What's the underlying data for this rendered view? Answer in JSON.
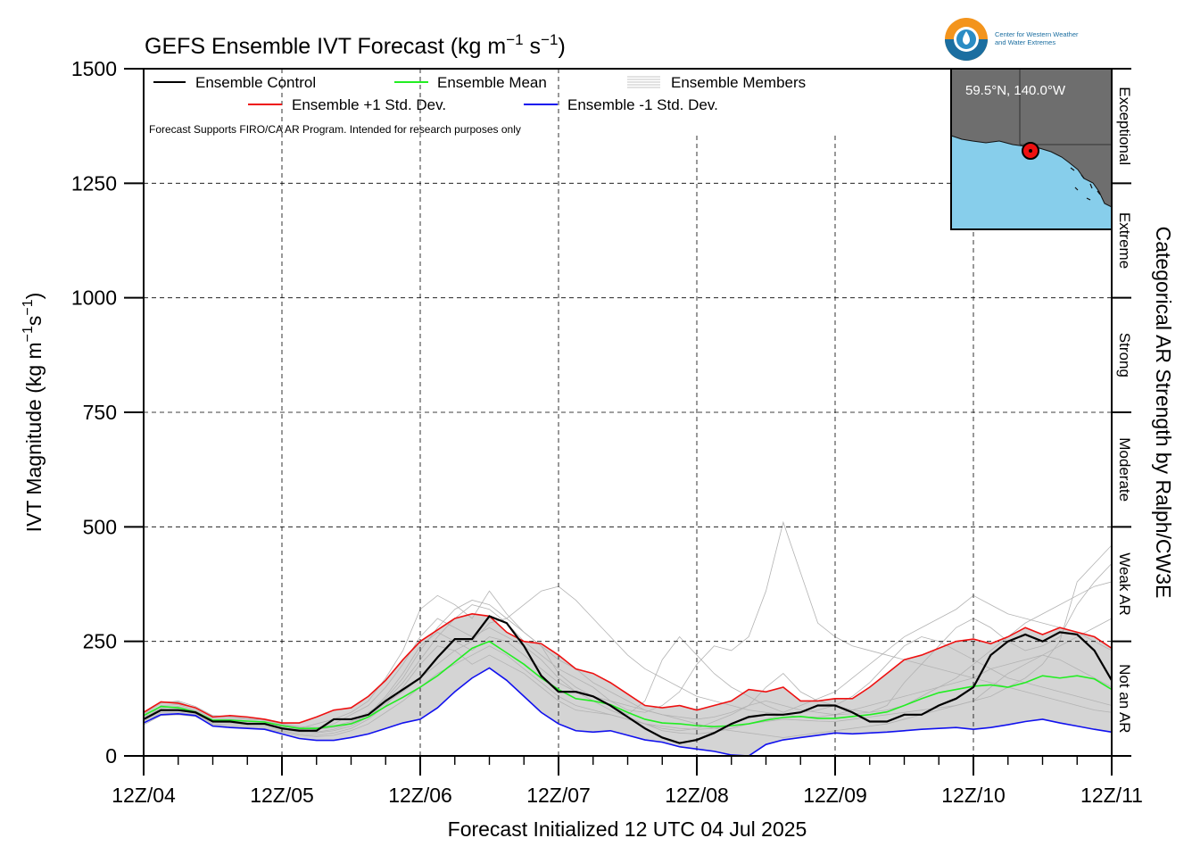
{
  "chart_data": {
    "type": "line",
    "title": "GEFS Ensemble IVT Forecast (kg m",
    "title_unit": [
      "−1",
      " s",
      "−1",
      ")"
    ],
    "xlabel": "Forecast Initialized 12 UTC 04 Jul 2025",
    "ylabel": "IVT Magnitude (kg m",
    "ylabel_unit": [
      "−1",
      "s",
      "−1",
      ")"
    ],
    "right_label": "Categorical AR Strength by Ralph/CW3E",
    "xlim": [
      0,
      168
    ],
    "ylim": [
      0,
      1500
    ],
    "x_ticks": [
      {
        "x": 0,
        "label": "12Z/04"
      },
      {
        "x": 24,
        "label": "12Z/05"
      },
      {
        "x": 48,
        "label": "12Z/06"
      },
      {
        "x": 72,
        "label": "12Z/07"
      },
      {
        "x": 96,
        "label": "12Z/08"
      },
      {
        "x": 120,
        "label": "12Z/09"
      },
      {
        "x": 144,
        "label": "12Z/10"
      },
      {
        "x": 168,
        "label": "12Z/11"
      }
    ],
    "y_ticks": [
      0,
      250,
      500,
      750,
      1000,
      1250,
      1500
    ],
    "grid": true,
    "categories_right": [
      {
        "label": "Not an AR",
        "range": [
          0,
          250
        ]
      },
      {
        "label": "Weak AR",
        "range": [
          250,
          500
        ]
      },
      {
        "label": "Moderate",
        "range": [
          500,
          750
        ]
      },
      {
        "label": "Strong",
        "range": [
          750,
          1000
        ]
      },
      {
        "label": "Extreme",
        "range": [
          1000,
          1250
        ]
      },
      {
        "label": "Exceptional",
        "range": [
          1250,
          1500
        ]
      }
    ],
    "legend": {
      "placement": "top-left",
      "entries": [
        {
          "label": "Ensemble Control",
          "color": "#000000"
        },
        {
          "label": "Ensemble Mean",
          "color": "#22ee22"
        },
        {
          "label": "Ensemble Members",
          "color": "#b0b0b0"
        },
        {
          "label": "Ensemble +1 Std. Dev.",
          "color": "#ee1111"
        },
        {
          "label": "Ensemble -1 Std. Dev.",
          "color": "#1111ee"
        }
      ]
    },
    "note": "Forecast Supports FIRO/CA AR Program. Intended for research purposes only",
    "series": [
      {
        "name": "Ensemble Control",
        "color": "#000000",
        "x": [
          0,
          3,
          6,
          9,
          12,
          15,
          18,
          21,
          24,
          27,
          30,
          33,
          36,
          39,
          42,
          45,
          48,
          51,
          54,
          57,
          60,
          63,
          66,
          69,
          72,
          75,
          78,
          81,
          84,
          87,
          90,
          93,
          96,
          99,
          102,
          105,
          108,
          111,
          114,
          117,
          120,
          123,
          126,
          129,
          132,
          135,
          138,
          141,
          144,
          147,
          150,
          153,
          156,
          159,
          162,
          165,
          168
        ],
        "values": [
          80,
          100,
          100,
          95,
          75,
          75,
          70,
          70,
          60,
          55,
          55,
          80,
          80,
          90,
          120,
          145,
          170,
          215,
          255,
          255,
          305,
          290,
          240,
          175,
          140,
          140,
          130,
          110,
          85,
          60,
          40,
          28,
          35,
          50,
          70,
          85,
          90,
          90,
          95,
          110,
          110,
          95,
          75,
          75,
          90,
          90,
          110,
          125,
          150,
          220,
          250,
          265,
          250,
          270,
          265,
          230,
          165
        ]
      },
      {
        "name": "Ensemble Mean",
        "color": "#22ee22",
        "x": [
          0,
          3,
          6,
          9,
          12,
          15,
          18,
          21,
          24,
          27,
          30,
          33,
          36,
          39,
          42,
          45,
          48,
          51,
          54,
          57,
          60,
          63,
          66,
          69,
          72,
          75,
          78,
          81,
          84,
          87,
          90,
          93,
          96,
          99,
          102,
          105,
          108,
          111,
          114,
          117,
          120,
          123,
          126,
          129,
          132,
          135,
          138,
          141,
          144,
          147,
          150,
          153,
          156,
          159,
          162,
          165,
          168
        ],
        "values": [
          88,
          108,
          105,
          96,
          78,
          78,
          76,
          74,
          66,
          60,
          60,
          65,
          70,
          85,
          108,
          128,
          150,
          175,
          205,
          235,
          250,
          225,
          200,
          170,
          145,
          125,
          120,
          112,
          95,
          80,
          72,
          70,
          66,
          64,
          66,
          70,
          78,
          84,
          86,
          82,
          82,
          86,
          90,
          96,
          110,
          125,
          138,
          145,
          152,
          155,
          150,
          160,
          175,
          170,
          175,
          168,
          145
        ]
      },
      {
        "name": "Ensemble +1 Std. Dev.",
        "color": "#ee1111",
        "x": [
          0,
          3,
          6,
          9,
          12,
          15,
          18,
          21,
          24,
          27,
          30,
          33,
          36,
          39,
          42,
          45,
          48,
          51,
          54,
          57,
          60,
          63,
          66,
          69,
          72,
          75,
          78,
          81,
          84,
          87,
          90,
          93,
          96,
          99,
          102,
          105,
          108,
          111,
          114,
          117,
          120,
          123,
          126,
          129,
          132,
          135,
          138,
          141,
          144,
          147,
          150,
          153,
          156,
          159,
          162,
          165,
          168
        ],
        "values": [
          95,
          118,
          115,
          105,
          85,
          88,
          85,
          80,
          72,
          72,
          85,
          100,
          105,
          130,
          165,
          210,
          250,
          275,
          300,
          310,
          305,
          270,
          250,
          245,
          220,
          190,
          180,
          160,
          135,
          110,
          105,
          110,
          100,
          110,
          120,
          145,
          140,
          150,
          120,
          120,
          125,
          125,
          150,
          180,
          210,
          220,
          235,
          250,
          255,
          245,
          260,
          280,
          265,
          280,
          270,
          260,
          235
        ]
      },
      {
        "name": "Ensemble -1 Std. Dev.",
        "color": "#1111ee",
        "x": [
          0,
          3,
          6,
          9,
          12,
          15,
          18,
          21,
          24,
          27,
          30,
          33,
          36,
          39,
          42,
          45,
          48,
          51,
          54,
          57,
          60,
          63,
          66,
          69,
          72,
          75,
          78,
          81,
          84,
          87,
          90,
          93,
          96,
          99,
          102,
          105,
          108,
          111,
          114,
          117,
          120,
          123,
          126,
          129,
          132,
          135,
          138,
          141,
          144,
          147,
          150,
          153,
          156,
          159,
          162,
          165,
          168
        ],
        "values": [
          72,
          90,
          92,
          88,
          65,
          62,
          60,
          58,
          48,
          38,
          34,
          34,
          40,
          48,
          60,
          72,
          80,
          105,
          140,
          170,
          192,
          165,
          130,
          95,
          70,
          55,
          52,
          55,
          45,
          35,
          30,
          20,
          15,
          10,
          2,
          -5,
          25,
          35,
          40,
          45,
          50,
          48,
          50,
          52,
          55,
          58,
          60,
          62,
          58,
          62,
          68,
          75,
          80,
          72,
          65,
          58,
          52
        ]
      }
    ],
    "members": [
      [
        78,
        110,
        112,
        100,
        82,
        80,
        76,
        75,
        64,
        60,
        70,
        80,
        95,
        120,
        170,
        230,
        320,
        350,
        330,
        300,
        360,
        310,
        270,
        240,
        180,
        150,
        130,
        110,
        90,
        120,
        210,
        260,
        220,
        180,
        150,
        130,
        110,
        95,
        110,
        125,
        140,
        170,
        200,
        230,
        260,
        280,
        300,
        320,
        350,
        330,
        310,
        300,
        290,
        280,
        270,
        250,
        230
      ],
      [
        85,
        102,
        100,
        94,
        76,
        74,
        72,
        70,
        60,
        58,
        60,
        70,
        90,
        110,
        150,
        200,
        260,
        300,
        280,
        260,
        280,
        260,
        240,
        210,
        170,
        140,
        120,
        100,
        85,
        70,
        60,
        55,
        60,
        75,
        90,
        110,
        150,
        180,
        140,
        120,
        110,
        100,
        95,
        110,
        160,
        200,
        240,
        280,
        300,
        280,
        250,
        230,
        240,
        260,
        330,
        380,
        420
      ],
      [
        70,
        95,
        95,
        90,
        70,
        68,
        66,
        64,
        55,
        48,
        45,
        50,
        60,
        80,
        110,
        150,
        200,
        240,
        230,
        200,
        220,
        200,
        180,
        150,
        120,
        100,
        95,
        90,
        80,
        70,
        55,
        50,
        48,
        52,
        60,
        70,
        80,
        90,
        85,
        85,
        90,
        100,
        110,
        120,
        130,
        140,
        150,
        160,
        170,
        190,
        200,
        210,
        220,
        210,
        190,
        170,
        150
      ],
      [
        90,
        115,
        120,
        108,
        88,
        86,
        82,
        80,
        70,
        64,
        62,
        65,
        75,
        95,
        120,
        160,
        210,
        260,
        300,
        330,
        320,
        290,
        250,
        220,
        190,
        170,
        150,
        120,
        100,
        95,
        110,
        140,
        200,
        240,
        230,
        260,
        360,
        510,
        400,
        290,
        260,
        240,
        230,
        220,
        210,
        200,
        190,
        180,
        170,
        160,
        150,
        140,
        130,
        120,
        110,
        100,
        95
      ],
      [
        75,
        98,
        100,
        92,
        74,
        72,
        70,
        68,
        58,
        52,
        50,
        55,
        65,
        85,
        115,
        140,
        170,
        200,
        230,
        250,
        290,
        300,
        330,
        360,
        370,
        340,
        300,
        260,
        220,
        190,
        170,
        150,
        130,
        120,
        110,
        100,
        95,
        90,
        95,
        100,
        110,
        130,
        160,
        200,
        240,
        260,
        250,
        230,
        210,
        190,
        170,
        160,
        150,
        140,
        130,
        120,
        110
      ],
      [
        82,
        105,
        108,
        98,
        78,
        76,
        74,
        72,
        62,
        55,
        52,
        58,
        70,
        90,
        130,
        180,
        240,
        270,
        250,
        230,
        260,
        250,
        220,
        190,
        160,
        140,
        130,
        120,
        110,
        100,
        90,
        80,
        70,
        60,
        55,
        50,
        45,
        40,
        45,
        50,
        55,
        60,
        65,
        70,
        80,
        90,
        100,
        110,
        120,
        130,
        150,
        170,
        200,
        250,
        380,
        420,
        460
      ],
      [
        68,
        88,
        90,
        86,
        68,
        64,
        62,
        60,
        52,
        45,
        42,
        45,
        55,
        70,
        95,
        120,
        150,
        180,
        200,
        220,
        240,
        220,
        190,
        160,
        130,
        110,
        100,
        90,
        80,
        70,
        65,
        60,
        58,
        60,
        65,
        70,
        75,
        80,
        78,
        76,
        75,
        80,
        85,
        90,
        95,
        100,
        105,
        110,
        120,
        150,
        180,
        200,
        220,
        240,
        260,
        280,
        300
      ],
      [
        92,
        118,
        118,
        104,
        86,
        84,
        80,
        78,
        68,
        62,
        58,
        62,
        72,
        92,
        125,
        170,
        230,
        280,
        320,
        340,
        330,
        300,
        270,
        240,
        210,
        190,
        160,
        140,
        120,
        100,
        90,
        85,
        80,
        85,
        95,
        110,
        120,
        110,
        100,
        95,
        90,
        92,
        95,
        100,
        110,
        130,
        150,
        170,
        200,
        230,
        260,
        290,
        310,
        330,
        350,
        370,
        380
      ]
    ],
    "map_inset": {
      "label": "59.5°N, 140.0°W"
    },
    "logo_text": [
      "Center for Western Weather",
      "and Water Extremes"
    ]
  }
}
